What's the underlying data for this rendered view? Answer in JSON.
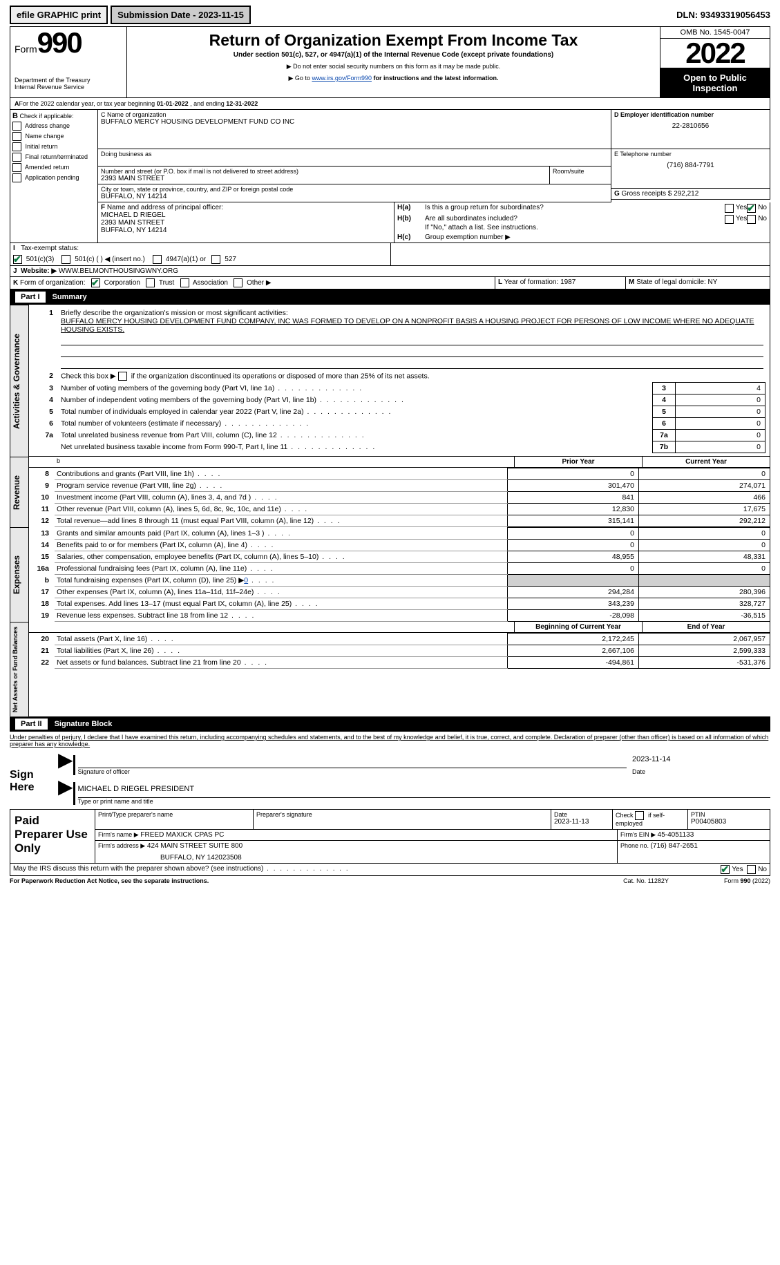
{
  "top": {
    "efile": "efile GRAPHIC print",
    "submission_label": "Submission Date - 2023-11-15",
    "dln_label": "DLN: 93493319056453"
  },
  "header": {
    "form_word": "Form",
    "form_number": "990",
    "dept": "Department of the Treasury",
    "irs": "Internal Revenue Service",
    "title": "Return of Organization Exempt From Income Tax",
    "subtitle": "Under section 501(c), 527, or 4947(a)(1) of the Internal Revenue Code (except private foundations)",
    "note_ssn": "Do not enter social security numbers on this form as it may be made public.",
    "note_goto_pre": "Go to ",
    "note_goto_link": "www.irs.gov/Form990",
    "note_goto_post": " for instructions and the latest information.",
    "omb": "OMB No. 1545-0047",
    "tax_year": "2022",
    "open_pub": "Open to Public Inspection"
  },
  "A": {
    "prefix": "A",
    "text_a": "For the 2022 calendar year, or tax year beginning ",
    "begin": "01-01-2022",
    "text_b": "  , and ending ",
    "end": "12-31-2022"
  },
  "B": {
    "label": "B",
    "check_label": " Check if applicable:",
    "opts": [
      "Address change",
      "Name change",
      "Initial return",
      "Final return/terminated",
      "Amended return",
      "Application pending"
    ]
  },
  "C": {
    "name_label": "C Name of organization",
    "name": "BUFFALO MERCY HOUSING DEVELOPMENT FUND CO INC",
    "dba_label": "Doing business as",
    "street_label": "Number and street (or P.O. box if mail is not delivered to street address)",
    "street": "2393 MAIN STREET",
    "room_label": "Room/suite",
    "city_label": "City or town, state or province, country, and ZIP or foreign postal code",
    "city": "BUFFALO, NY  14214"
  },
  "D": {
    "label": "D Employer identification number",
    "val": "22-2810656"
  },
  "E": {
    "label": "E Telephone number",
    "val": "(716) 884-7791"
  },
  "G": {
    "label": "G",
    "text": " Gross receipts $ ",
    "val": "292,212"
  },
  "F": {
    "label": "F",
    "text": " Name and address of principal officer:",
    "name": "MICHAEL D RIEGEL",
    "street": "2393 MAIN STREET",
    "city": "BUFFALO, NY  14214"
  },
  "H": {
    "a_label": "H(a)",
    "a_text": "Is this a group return for subordinates?",
    "yes": "Yes",
    "no": "No",
    "b_label": "H(b)",
    "b_text": "Are all subordinates included?",
    "b_note": "If \"No,\" attach a list. See instructions.",
    "c_label": "H(c)",
    "c_text": "Group exemption number ▶"
  },
  "I": {
    "label": "I",
    "text": "Tax-exempt status:",
    "c3": "501(c)(3)",
    "c": "501(c) (  ) ◀ (insert no.)",
    "a4947": "4947(a)(1) or",
    "s527": "527"
  },
  "J": {
    "label": "J",
    "text": "Website: ▶",
    "val": "  WWW.BELMONTHOUSINGWNY.ORG"
  },
  "K": {
    "label": "K",
    "text": " Form of organization:",
    "opts": [
      "Corporation",
      "Trust",
      "Association",
      "Other ▶"
    ]
  },
  "L": {
    "label": "L",
    "text": " Year of formation: ",
    "val": "1987"
  },
  "M": {
    "label": "M",
    "text": " State of legal domicile: ",
    "val": "NY"
  },
  "partI": {
    "part": "Part I",
    "title": "Summary",
    "l1_label": "1",
    "l1_text": "Briefly describe the organization's mission or most significant activities:",
    "mission": "BUFFALO MERCY HOUSING DEVELOPMENT FUND COMPANY, INC WAS FORMED TO DEVELOP ON A NONPROFIT BASIS A HOUSING PROJECT FOR PERSONS OF LOW INCOME WHERE NO ADEQUATE HOUSING EXISTS.",
    "l2_label": "2",
    "l2_text": "Check this box ▶ ",
    "l2_post": " if the organization discontinued its operations or disposed of more than 25% of its net assets.",
    "rows_gov": [
      {
        "n": "3",
        "t": "Number of voting members of the governing body (Part VI, line 1a)",
        "box": "3",
        "v": "4"
      },
      {
        "n": "4",
        "t": "Number of independent voting members of the governing body (Part VI, line 1b)",
        "box": "4",
        "v": "0"
      },
      {
        "n": "5",
        "t": "Total number of individuals employed in calendar year 2022 (Part V, line 2a)",
        "box": "5",
        "v": "0"
      },
      {
        "n": "6",
        "t": "Total number of volunteers (estimate if necessary)",
        "box": "6",
        "v": "0"
      },
      {
        "n": "7a",
        "t": "Total unrelated business revenue from Part VIII, column (C), line 12",
        "box": "7a",
        "v": "0"
      },
      {
        "n": "",
        "t": "Net unrelated business taxable income from Form 990-T, Part I, line 11",
        "box": "7b",
        "v": "0"
      }
    ],
    "prior": "Prior Year",
    "current": "Current Year",
    "rev_rows": [
      {
        "n": "8",
        "t": "Contributions and grants (Part VIII, line 1h)",
        "p": "0",
        "c": "0"
      },
      {
        "n": "9",
        "t": "Program service revenue (Part VIII, line 2g)",
        "p": "301,470",
        "c": "274,071"
      },
      {
        "n": "10",
        "t": "Investment income (Part VIII, column (A), lines 3, 4, and 7d )",
        "p": "841",
        "c": "466"
      },
      {
        "n": "11",
        "t": "Other revenue (Part VIII, column (A), lines 5, 6d, 8c, 9c, 10c, and 11e)",
        "p": "12,830",
        "c": "17,675"
      },
      {
        "n": "12",
        "t": "Total revenue—add lines 8 through 11 (must equal Part VIII, column (A), line 12)",
        "p": "315,141",
        "c": "292,212"
      }
    ],
    "exp_rows": [
      {
        "n": "13",
        "t": "Grants and similar amounts paid (Part IX, column (A), lines 1–3 )",
        "p": "0",
        "c": "0"
      },
      {
        "n": "14",
        "t": "Benefits paid to or for members (Part IX, column (A), line 4)",
        "p": "0",
        "c": "0"
      },
      {
        "n": "15",
        "t": "Salaries, other compensation, employee benefits (Part IX, column (A), lines 5–10)",
        "p": "48,955",
        "c": "48,331"
      },
      {
        "n": "16a",
        "t": "Professional fundraising fees (Part IX, column (A), line 11e)",
        "p": "0",
        "c": "0"
      },
      {
        "n": "b",
        "t": "Total fundraising expenses (Part IX, column (D), line 25) ▶",
        "p": "__GREY__",
        "c": "__GREY__",
        "fund": "0"
      },
      {
        "n": "17",
        "t": "Other expenses (Part IX, column (A), lines 11a–11d, 11f–24e)",
        "p": "294,284",
        "c": "280,396"
      },
      {
        "n": "18",
        "t": "Total expenses. Add lines 13–17 (must equal Part IX, column (A), line 25)",
        "p": "343,239",
        "c": "328,727"
      },
      {
        "n": "19",
        "t": "Revenue less expenses. Subtract line 18 from line 12",
        "p": "-28,098",
        "c": "-36,515"
      }
    ],
    "bal_hdr_b": "Beginning of Current Year",
    "bal_hdr_e": "End of Year",
    "bal_rows": [
      {
        "n": "20",
        "t": "Total assets (Part X, line 16)",
        "p": "2,172,245",
        "c": "2,067,957"
      },
      {
        "n": "21",
        "t": "Total liabilities (Part X, line 26)",
        "p": "2,667,106",
        "c": "2,599,333"
      },
      {
        "n": "22",
        "t": "Net assets or fund balances. Subtract line 21 from line 20",
        "p": "-494,861",
        "c": "-531,376"
      }
    ]
  },
  "vtabs": {
    "gov": "Activities & Governance",
    "rev": "Revenue",
    "exp": "Expenses",
    "net": "Net Assets or Fund Balances"
  },
  "partII": {
    "part": "Part II",
    "title": "Signature Block",
    "penalty": "Under penalties of perjury, I declare that I have examined this return, including accompanying schedules and statements, and to the best of my knowledge and belief, it is true, correct, and complete. Declaration of preparer (other than officer) is based on all information of which preparer has any knowledge.",
    "sign_here": "Sign Here",
    "sig_of_officer": "Signature of officer",
    "date_label": "Date",
    "date": "2023-11-14",
    "typed_name": "MICHAEL D RIEGEL  PRESIDENT",
    "type_label": "Type or print name and title"
  },
  "paid": {
    "label": "Paid Preparer Use Only",
    "pname_label": "Print/Type preparer's name",
    "psig_label": "Preparer's signature",
    "pdate_label": "Date",
    "pdate": "2023-11-13",
    "chk_label": "Check",
    "chk_if": "if self-employed",
    "ptin_label": "PTIN",
    "ptin": "P00405803",
    "firm_name_label": "Firm's name    ▶",
    "firm_name": " FREED MAXICK CPAS PC",
    "firm_ein_label": "Firm's EIN ▶ ",
    "firm_ein": "45-4051133",
    "firm_addr_label": "Firm's address ▶",
    "firm_addr1": " 424 MAIN STREET SUITE 800",
    "firm_addr2": "BUFFALO, NY  142023508",
    "phone_label": "Phone no. ",
    "phone": "(716) 847-2651"
  },
  "footer": {
    "may_discuss": "May the IRS discuss this return with the preparer shown above? (see instructions)",
    "yes": "Yes",
    "no": "No",
    "paperwork": "For Paperwork Reduction Act Notice, see the separate instructions.",
    "cat": "Cat. No. 11282Y",
    "form": "Form ",
    "form990": "990",
    "form_yr": " (2022)"
  }
}
